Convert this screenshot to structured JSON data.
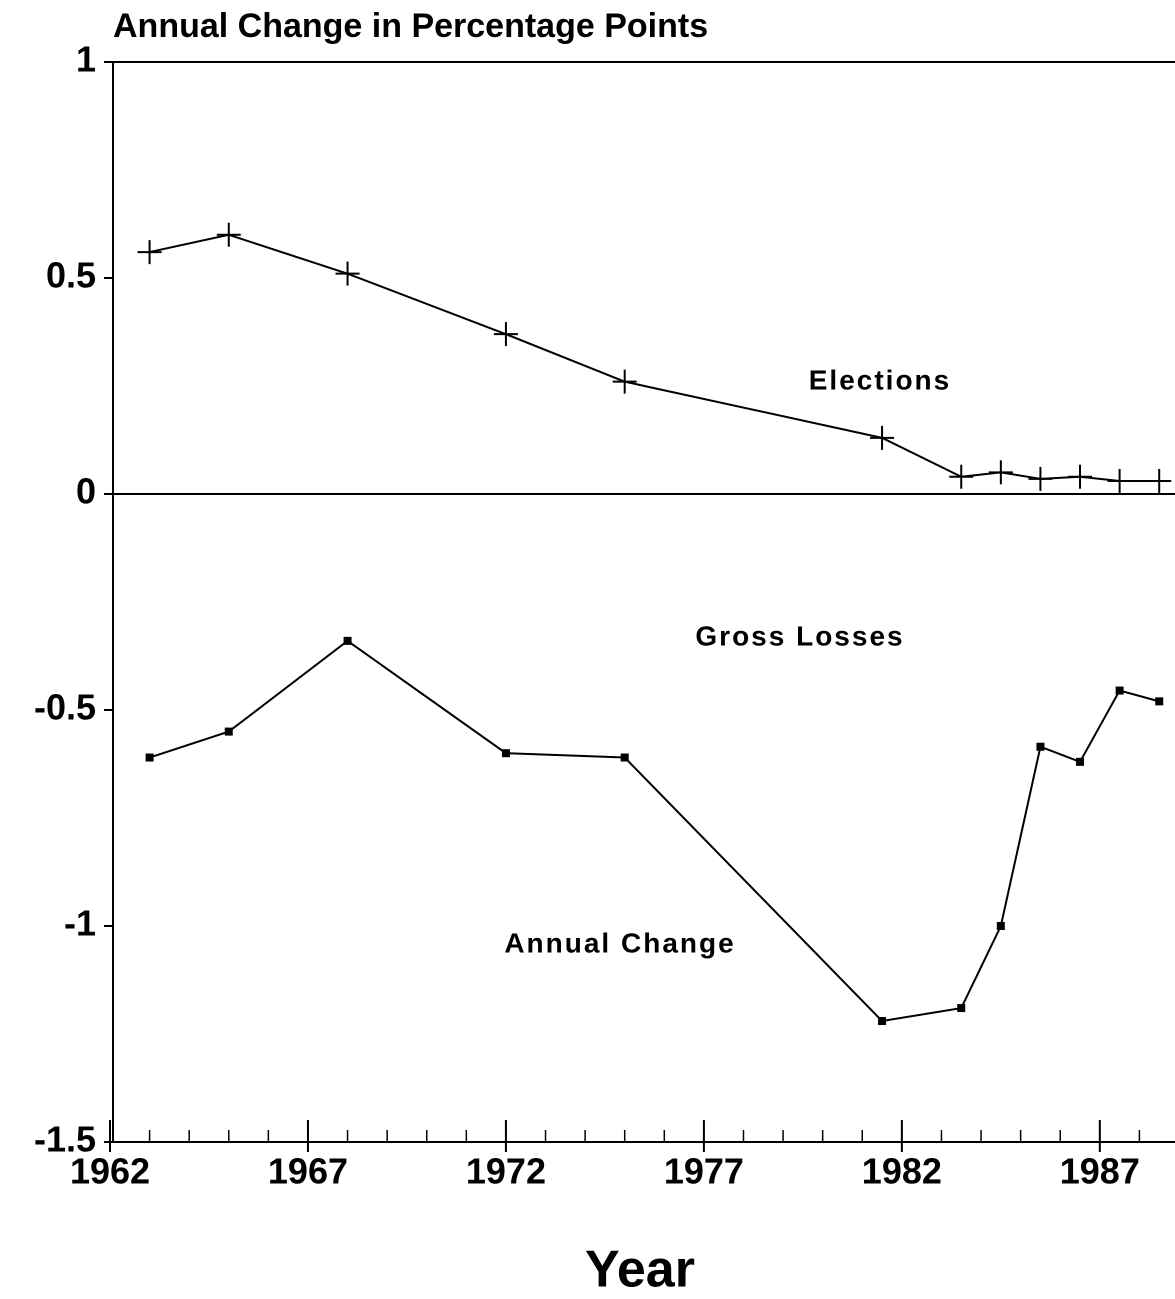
{
  "chart_data": {
    "type": "line",
    "title": "Annual Change in Percentage Points",
    "x_label": "Year",
    "annotations": [
      "Gross Losses"
    ],
    "x": [
      1963,
      1965,
      1968,
      1972,
      1975,
      1981.5,
      1983.5,
      1984.5,
      1985.5,
      1986.5,
      1987.5,
      1988.5
    ],
    "series": [
      {
        "name": "Elections",
        "color": "#000000",
        "marker": "plus",
        "values": [
          0.56,
          0.6,
          0.51,
          0.37,
          0.26,
          0.13,
          0.04,
          0.05,
          0.035,
          0.04,
          0.03,
          0.03
        ]
      },
      {
        "name": "Annual Change",
        "color": "#000000",
        "marker": "square",
        "values": [
          -0.61,
          -0.55,
          -0.34,
          -0.6,
          -0.61,
          -1.22,
          -1.19,
          -1.0,
          -0.585,
          -0.62,
          -0.455,
          -0.48
        ]
      }
    ],
    "xlim": [
      1962,
      1989
    ],
    "xticks": [
      1962,
      1967,
      1972,
      1977,
      1982,
      1987
    ],
    "ylim": [
      -1.5,
      1
    ],
    "yticks": [
      -1.5,
      -1,
      -0.5,
      0,
      0.5,
      1
    ],
    "zero_line": true
  }
}
